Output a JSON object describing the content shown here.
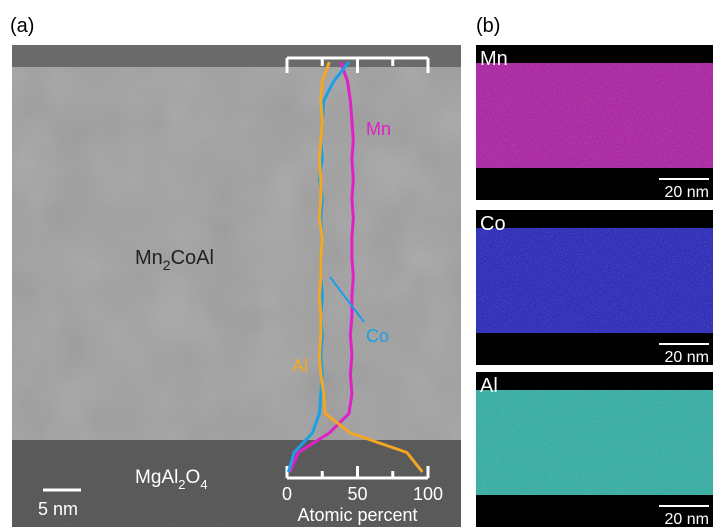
{
  "panel_a": {
    "label": "(a)",
    "film_label": [
      "Mn",
      "2",
      "CoAl"
    ],
    "substrate_label": [
      "MgAl",
      "2",
      "O",
      "4"
    ],
    "scale_bar": "5 nm"
  },
  "panel_b": {
    "label": "(b)",
    "maps": [
      {
        "element": "Mn",
        "color": "#d418c8",
        "scale_bar": "20 nm"
      },
      {
        "element": "Co",
        "color": "#2020e8",
        "scale_bar": "20 nm"
      },
      {
        "element": "Al",
        "color": "#30d8c8",
        "scale_bar": "20 nm"
      }
    ]
  },
  "chart_data": {
    "type": "line",
    "orientation": "vertical",
    "x_label": "Atomic percent",
    "xlim": [
      0,
      100
    ],
    "xticks": [
      0,
      50,
      100
    ],
    "xminorticks": [
      25,
      75
    ],
    "series": [
      {
        "name": "Mn",
        "color": "#e020c8",
        "values": [
          38,
          43,
          45,
          46,
          47,
          46,
          47,
          46,
          47,
          46,
          46,
          47,
          46,
          46,
          45,
          46,
          45,
          46,
          44,
          30,
          8,
          2
        ]
      },
      {
        "name": "Co",
        "color": "#1aa0e6",
        "values": [
          44,
          33,
          26,
          25,
          24,
          25,
          23,
          25,
          24,
          25,
          24,
          24,
          25,
          24,
          25,
          24,
          25,
          24,
          23,
          18,
          5,
          1
        ]
      },
      {
        "name": "Al",
        "color": "#f5a623",
        "values": [
          30,
          25,
          24,
          25,
          24,
          23,
          24,
          24,
          23,
          25,
          24,
          24,
          23,
          24,
          24,
          23,
          24,
          26,
          27,
          45,
          85,
          96
        ]
      }
    ]
  }
}
